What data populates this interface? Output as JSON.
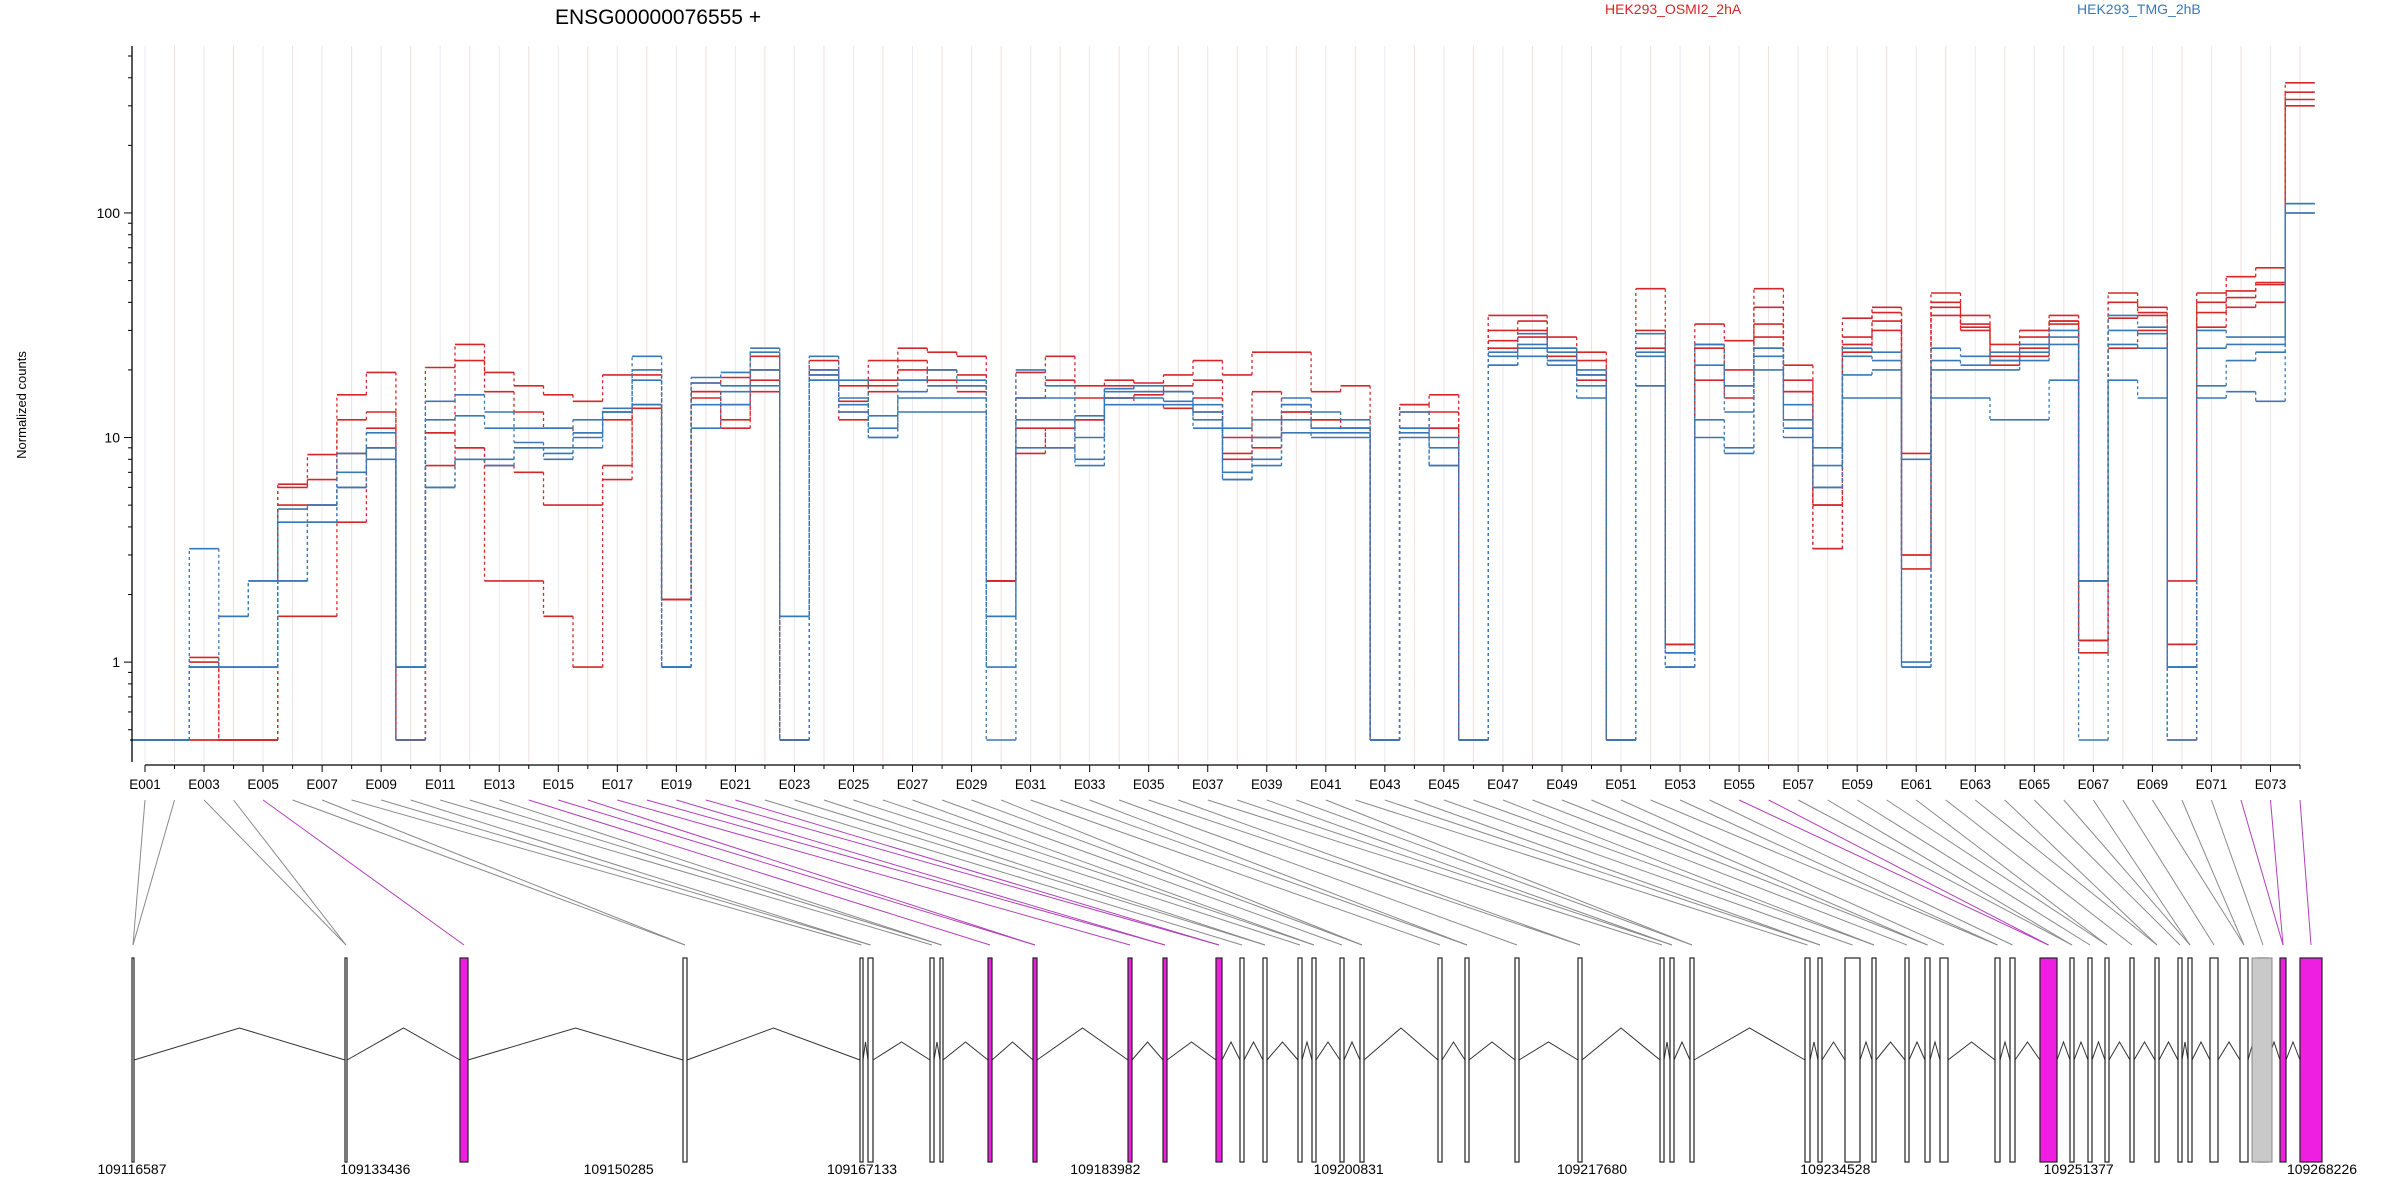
{
  "chart_data": {
    "type": "line",
    "title": "ENSG00000076555 +",
    "ylabel": "Normalized counts",
    "xlabel": "",
    "yscale": "log",
    "ylim": [
      0.45,
      500
    ],
    "yticks": [
      1,
      10,
      100
    ],
    "ytick_labels": [
      "1",
      "10",
      "100"
    ],
    "grid": "faint vertical lines at exon positions",
    "legend": {
      "placement": "top-right",
      "entries": [
        {
          "label": "HEK293_OSMI2_2hA",
          "color": "#d62728"
        },
        {
          "label": "HEK293_TMG_2hB",
          "color": "#3a78b5"
        }
      ]
    },
    "exon_tick_labels": [
      "E001",
      "E003",
      "E005",
      "E007",
      "E009",
      "E011",
      "E013",
      "E015",
      "E017",
      "E019",
      "E021",
      "E023",
      "E025",
      "E027",
      "E029",
      "E031",
      "E033",
      "E035",
      "E037",
      "E039",
      "E041",
      "E043",
      "E045",
      "E047",
      "E049",
      "E051",
      "E053",
      "E055",
      "E057",
      "E059",
      "E061",
      "E063",
      "E065",
      "E067",
      "E069",
      "E071",
      "E073"
    ],
    "series": [
      {
        "name": "HEK293_OSMI2_2hA",
        "color": "#d62728",
        "values": [
          0.45,
          0.45,
          1.05,
          0.45,
          0.45,
          6.2,
          8.4,
          15.5,
          19.5,
          0.45,
          20.5,
          26,
          19.5,
          17,
          15.5,
          14.5,
          19,
          19,
          1.9,
          17.5,
          18.5,
          23,
          0.45,
          22,
          17,
          22,
          25,
          24,
          23,
          2.3,
          19.5,
          23,
          17,
          18,
          17.5,
          19,
          22,
          19,
          24,
          24,
          16,
          17,
          0.45,
          14,
          15.5,
          0.45,
          35,
          35,
          28,
          24,
          0.45,
          46,
          1.2,
          32,
          27,
          46,
          21,
          5,
          34,
          38,
          8.5,
          44,
          35,
          26,
          30,
          35,
          1.25,
          44,
          38,
          0.45,
          44,
          52,
          57,
          380
        ]
      },
      {
        "name": "HEK293_OSMI2_2hA",
        "color": "#d62728",
        "values": [
          0.45,
          0.45,
          0.45,
          0.45,
          0.45,
          6,
          6.5,
          12,
          13,
          0.45,
          10.5,
          22,
          16,
          13,
          11,
          10.5,
          12,
          13.5,
          1.9,
          16,
          14,
          20,
          0.45,
          20,
          14.5,
          18,
          22,
          20,
          19,
          2.3,
          15,
          18,
          15,
          17,
          16,
          17,
          18,
          10,
          16,
          14,
          12,
          11,
          0.45,
          14,
          13,
          0.45,
          30,
          33,
          25,
          22,
          0.45,
          30,
          1.2,
          26,
          20,
          38,
          18,
          5,
          28,
          36,
          3,
          40,
          32,
          23,
          28,
          33,
          1.25,
          40,
          36,
          2.3,
          40,
          45,
          49,
          345
        ]
      },
      {
        "name": "HEK293_OSMI2_2hA",
        "color": "#d62728",
        "values": [
          0.45,
          0.45,
          1,
          0.45,
          0.45,
          5,
          5,
          8.5,
          11,
          0.45,
          10.5,
          9,
          7.5,
          7,
          5,
          5,
          7.5,
          14,
          1.9,
          16,
          12,
          18,
          0.45,
          19,
          13,
          17,
          20,
          18,
          17,
          2.3,
          11,
          9,
          12,
          15,
          15.5,
          16,
          15,
          8,
          9,
          13,
          12,
          11,
          0.45,
          13,
          11,
          0.45,
          27,
          30,
          23,
          19,
          0.45,
          25,
          1.2,
          25,
          17,
          32,
          16,
          3.2,
          26,
          33,
          3,
          38,
          31,
          22,
          25,
          33,
          1.25,
          34,
          35,
          1.2,
          36,
          42,
          48,
          320
        ]
      },
      {
        "name": "HEK293_OSMI2_2hA",
        "color": "#d62728",
        "values": [
          0.45,
          0.45,
          0.45,
          0.45,
          0.45,
          1.6,
          1.6,
          4.2,
          9,
          0.45,
          7.5,
          9,
          2.3,
          2.3,
          1.6,
          0.95,
          6.5,
          14,
          1.9,
          15,
          11,
          16,
          0.45,
          18,
          12,
          16,
          18,
          17,
          16,
          2.3,
          8.5,
          11,
          12,
          15,
          14,
          13.5,
          13,
          8.5,
          10,
          13,
          11,
          11,
          0.45,
          11,
          11,
          0.45,
          25,
          28,
          22,
          18,
          0.45,
          17,
          1.2,
          18,
          15,
          28,
          16,
          3.2,
          24,
          30,
          2.6,
          35,
          30,
          21,
          23,
          32,
          1.1,
          25,
          30,
          1.2,
          31,
          38,
          40,
          300
        ]
      },
      {
        "name": "HEK293_TMG_2hB",
        "color": "#3a78b5",
        "values": [
          0.45,
          0.45,
          3.2,
          1.6,
          2.3,
          4.8,
          5,
          8.5,
          10.5,
          0.95,
          14.5,
          15.5,
          13,
          11,
          11,
          12,
          13.5,
          23,
          0.95,
          18.5,
          19.5,
          25,
          1.6,
          23,
          18,
          12.5,
          18,
          20,
          18,
          1.6,
          20,
          17,
          12.5,
          16.5,
          17,
          16,
          14,
          11,
          12,
          15,
          13,
          12,
          0.45,
          13,
          9,
          0.45,
          24,
          29,
          25,
          20,
          0.45,
          29,
          1.1,
          26,
          17,
          25,
          14,
          9,
          25,
          24,
          8,
          25,
          23,
          24,
          26,
          30,
          2.3,
          35,
          31,
          0.95,
          30,
          28,
          28,
          110
        ]
      },
      {
        "name": "HEK293_TMG_2hB",
        "color": "#3a78b5",
        "values": [
          0.45,
          0.45,
          0.95,
          1.6,
          2.3,
          4.2,
          5,
          7,
          9,
          0.95,
          12,
          12.5,
          11,
          9.5,
          9,
          10.5,
          13,
          20,
          0.95,
          17.5,
          17,
          24,
          1.6,
          20,
          15,
          11,
          16,
          17,
          17,
          1.6,
          15,
          15,
          10,
          16,
          16,
          16,
          13,
          7,
          10,
          14,
          11,
          11,
          0.45,
          11,
          10,
          0.45,
          23,
          26,
          24,
          19,
          0.45,
          24,
          1.1,
          21,
          13,
          25,
          12,
          7.5,
          23,
          22,
          1,
          22,
          21,
          22,
          24,
          28,
          2.3,
          30,
          29,
          0.95,
          25,
          26,
          26,
          110
        ]
      },
      {
        "name": "HEK293_TMG_2hB",
        "color": "#3a78b5",
        "values": [
          0.45,
          0.45,
          0.95,
          0.95,
          0.95,
          2.3,
          4.2,
          6,
          8,
          0.95,
          6,
          8,
          8,
          9,
          8.5,
          9,
          13,
          18,
          0.95,
          14,
          16,
          20,
          0.45,
          19,
          14,
          10,
          15,
          15,
          15,
          0.95,
          12,
          12,
          8,
          15,
          15,
          14.5,
          12,
          6.5,
          8,
          12,
          10.5,
          10.5,
          0.45,
          10.5,
          7.5,
          0.45,
          21,
          25,
          22,
          17,
          0.45,
          23,
          0.95,
          12,
          9,
          23,
          11,
          6,
          19,
          20,
          0.95,
          20,
          20,
          20,
          22,
          26,
          2.3,
          26,
          25,
          0.95,
          17,
          22,
          24,
          100
        ]
      },
      {
        "name": "HEK293_TMG_2hB",
        "color": "#3a78b5",
        "values": [
          0.45,
          0.45,
          0.95,
          0.95,
          0.95,
          2.3,
          4.2,
          6,
          9,
          0.45,
          6,
          8,
          7.5,
          9,
          8,
          10,
          13,
          14,
          0.95,
          11,
          14,
          17,
          0.45,
          18,
          13,
          10,
          13,
          13,
          13,
          0.45,
          9,
          9,
          7.5,
          14,
          14,
          14,
          11,
          6.5,
          7.5,
          10.5,
          10,
          10,
          0.45,
          10,
          7.5,
          0.45,
          21,
          23,
          21,
          15,
          0.45,
          17,
          0.95,
          10,
          8.5,
          20,
          10,
          6,
          15,
          15,
          0.95,
          15,
          15,
          12,
          12,
          18,
          0.45,
          18,
          15,
          0.45,
          15,
          16,
          14.5,
          100
        ]
      }
    ],
    "genomic_axis": {
      "tick_labels": [
        "109116587",
        "109133436",
        "109150285",
        "109167133",
        "109183982",
        "109200831",
        "109217680",
        "109234528",
        "109251377",
        "109268226"
      ],
      "range": [
        109116587,
        109268226
      ]
    }
  },
  "colors": {
    "red": "#d62728",
    "blue": "#3a78b5",
    "magenta": "#ee1fe0",
    "purple": "#b040b8",
    "gray": "#c9c9c9"
  }
}
